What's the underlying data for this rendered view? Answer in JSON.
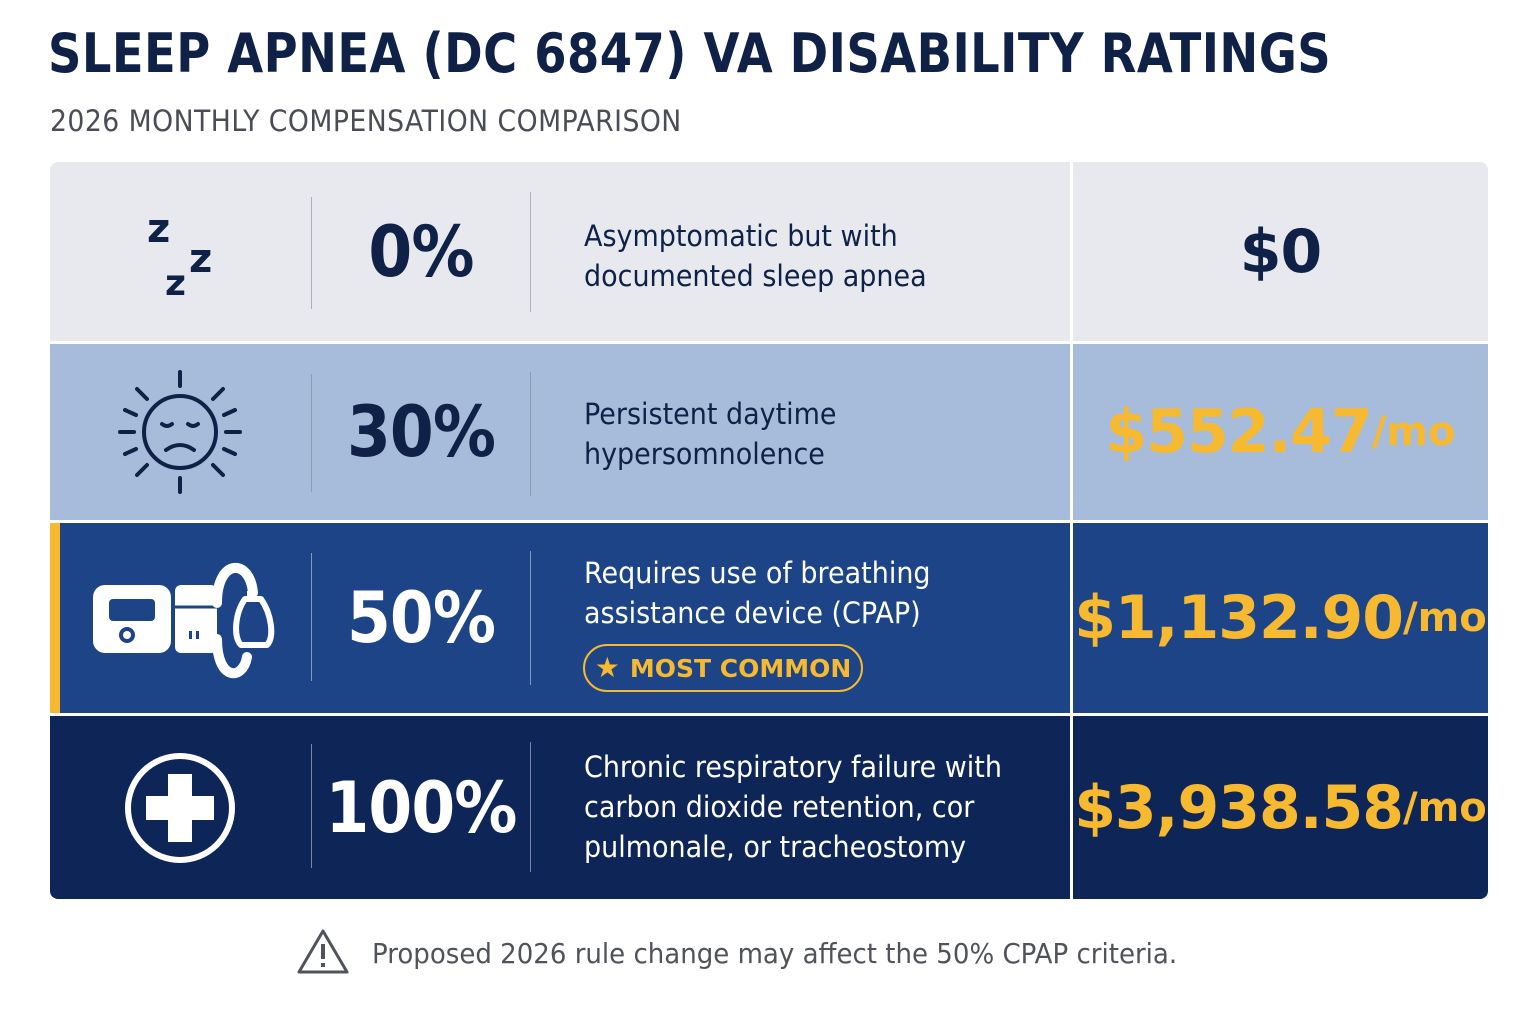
{
  "header": {
    "title": "SLEEP APNEA (DC 6847) VA DISABILITY RATINGS",
    "subtitle": "2026 MONTHLY COMPENSATION COMPARISON"
  },
  "colors": {
    "navy": "#0f2147",
    "gold": "#f6b92f",
    "row_0_bg": "#e7e9ee",
    "row_30_bg": "#a7bcda",
    "row_50_bg": "#1c4487",
    "row_100_bg": "#0e2558"
  },
  "ratings": [
    {
      "icon": "zzz-sleep-icon",
      "percent": "0%",
      "description_lines": [
        "Asymptomatic but with",
        "documented sleep apnea"
      ],
      "amount": "$0",
      "unit": ""
    },
    {
      "icon": "tired-sun-icon",
      "percent": "30%",
      "description_lines": [
        "Persistent daytime",
        "hypersomnolence"
      ],
      "amount": "$552.47",
      "unit": "/mo"
    },
    {
      "icon": "cpap-machine-icon",
      "percent": "50%",
      "description_lines": [
        "Requires use of breathing",
        "assistance device (CPAP)"
      ],
      "amount": "$1,132.90",
      "unit": "/mo",
      "badge": "MOST COMMON",
      "badge_icon": "star-icon"
    },
    {
      "icon": "medical-cross-icon",
      "percent": "100%",
      "description_lines": [
        "Chronic respiratory failure with",
        "carbon dioxide retention, cor",
        "pulmonale, or tracheostomy"
      ],
      "amount": "$3,938.58",
      "unit": "/mo"
    }
  ],
  "footer": {
    "icon": "warning-icon",
    "note": "Proposed 2026 rule change may affect the 50% CPAP criteria."
  }
}
